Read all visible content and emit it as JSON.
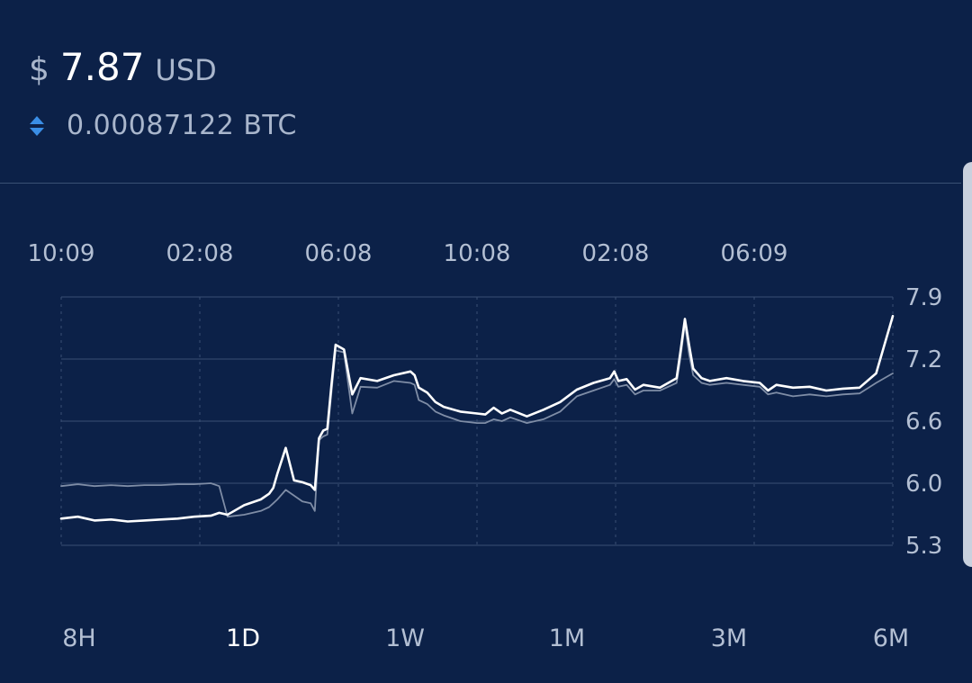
{
  "header": {
    "currency_symbol": "$",
    "price": "7.87",
    "currency_code": "USD",
    "btc_value": "0.00087122 BTC",
    "swap_icon": "swap-vertical-icon"
  },
  "colors": {
    "background": "#0c2148",
    "primary_line": "#ffffff",
    "secondary_line": "#7f8da6",
    "grid": "#3a5074",
    "accent_icon": "#3a8ee6"
  },
  "range_selector": {
    "options": [
      "8H",
      "1D",
      "1W",
      "1M",
      "3M",
      "6M"
    ],
    "selected": "1D"
  },
  "chart_data": {
    "type": "line",
    "x_tick_labels": [
      "10:09",
      "02:08",
      "06:08",
      "10:08",
      "02:08",
      "06:09"
    ],
    "y_tick_labels": [
      "7.9",
      "7.2",
      "6.6",
      "6.0",
      "5.3"
    ],
    "ylim": [
      5.3,
      7.9
    ],
    "grid": true,
    "x_tick_position": "top",
    "y_tick_position": "right",
    "x": [
      0,
      2,
      4,
      6,
      8,
      10,
      12,
      14,
      16,
      18,
      19,
      20,
      22,
      24,
      25,
      25.5,
      26,
      27,
      28,
      29,
      30,
      30.5,
      31,
      31.5,
      32,
      32.5,
      33,
      34,
      35,
      36,
      38,
      40,
      42,
      42.5,
      43,
      44,
      45,
      46,
      48,
      50,
      51,
      52,
      53,
      54,
      56,
      58,
      60,
      62,
      64,
      66,
      66.5,
      67,
      68,
      69,
      70,
      72,
      74,
      74.5,
      75,
      75.5,
      76,
      77,
      78,
      80,
      82,
      84,
      85,
      86,
      88,
      90,
      92,
      94,
      96,
      98,
      100
    ],
    "series": [
      {
        "values": [
          5.58,
          5.6,
          5.56,
          5.57,
          5.55,
          5.56,
          5.57,
          5.58,
          5.6,
          5.61,
          5.64,
          5.62,
          5.72,
          5.78,
          5.84,
          5.9,
          6.05,
          6.32,
          5.98,
          5.96,
          5.93,
          5.88,
          6.42,
          6.5,
          6.52,
          6.98,
          7.4,
          7.35,
          6.88,
          7.05,
          7.02,
          7.08,
          7.12,
          7.08,
          6.95,
          6.9,
          6.8,
          6.75,
          6.7,
          6.68,
          6.67,
          6.74,
          6.68,
          6.72,
          6.65,
          6.72,
          6.8,
          6.93,
          7.0,
          7.05,
          7.12,
          7.02,
          7.04,
          6.93,
          6.98,
          6.95,
          7.05,
          7.35,
          7.67,
          7.4,
          7.15,
          7.05,
          7.02,
          7.05,
          7.02,
          7.0,
          6.92,
          6.98,
          6.95,
          6.96,
          6.92,
          6.94,
          6.95,
          7.1,
          7.7
        ]
      },
      {
        "values": [
          5.92,
          5.94,
          5.92,
          5.93,
          5.92,
          5.93,
          5.93,
          5.94,
          5.94,
          5.95,
          5.92,
          5.6,
          5.62,
          5.66,
          5.7,
          5.74,
          5.78,
          5.88,
          5.82,
          5.76,
          5.74,
          5.66,
          6.4,
          6.44,
          6.46,
          6.9,
          7.34,
          7.32,
          6.68,
          6.96,
          6.95,
          7.02,
          7.0,
          6.98,
          6.82,
          6.78,
          6.7,
          6.66,
          6.6,
          6.58,
          6.58,
          6.62,
          6.6,
          6.64,
          6.58,
          6.62,
          6.7,
          6.86,
          6.92,
          6.98,
          7.04,
          6.96,
          6.98,
          6.88,
          6.92,
          6.92,
          7.0,
          7.28,
          7.62,
          7.3,
          7.08,
          7.0,
          6.98,
          7.0,
          6.98,
          6.96,
          6.88,
          6.9,
          6.86,
          6.88,
          6.86,
          6.88,
          6.89,
          7.0,
          7.1
        ]
      }
    ]
  }
}
